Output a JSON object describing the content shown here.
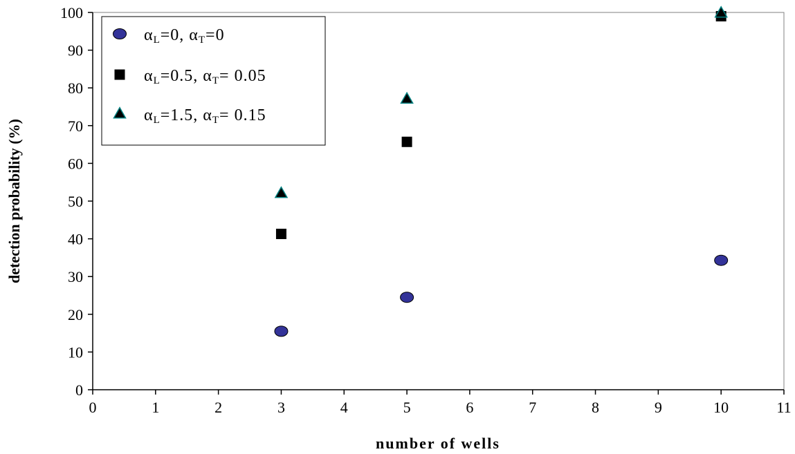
{
  "chart_data": {
    "type": "scatter",
    "xlabel": "number of wells",
    "ylabel": "detection probability (%)",
    "xlim": [
      0,
      11
    ],
    "ylim": [
      0,
      100
    ],
    "x_ticks": [
      "0",
      "1",
      "2",
      "3",
      "4",
      "5",
      "6",
      "7",
      "8",
      "9",
      "10",
      "11"
    ],
    "y_ticks": [
      "0",
      "10",
      "20",
      "30",
      "40",
      "50",
      "60",
      "70",
      "80",
      "90",
      "100"
    ],
    "grid": false,
    "legend_position": "top-left",
    "series": [
      {
        "legend": {
          "a": "α",
          "s1": "L",
          "m": "=0, ",
          "b": "α",
          "s2": "T",
          "e": "=0"
        },
        "marker": "circle",
        "color": "#333399",
        "points": [
          {
            "x": 3,
            "y": 15.5
          },
          {
            "x": 5,
            "y": 24.5
          },
          {
            "x": 10,
            "y": 34.3
          }
        ]
      },
      {
        "legend": {
          "a": "α",
          "s1": "L",
          "m": "=0.5, ",
          "b": "α",
          "s2": "T",
          "e": "= 0.05"
        },
        "marker": "square",
        "color": "#000000",
        "points": [
          {
            "x": 3,
            "y": 41.3
          },
          {
            "x": 5,
            "y": 65.7
          },
          {
            "x": 10,
            "y": 99.0
          }
        ]
      },
      {
        "legend": {
          "a": "α",
          "s1": "L",
          "m": "=1.5, ",
          "b": "α",
          "s2": "T",
          "e": "= 0.15"
        },
        "marker": "triangle",
        "color": "#000000",
        "edge_color": "#008080",
        "points": [
          {
            "x": 3,
            "y": 52.0
          },
          {
            "x": 5,
            "y": 77.0
          },
          {
            "x": 10,
            "y": 99.8
          }
        ]
      }
    ]
  }
}
